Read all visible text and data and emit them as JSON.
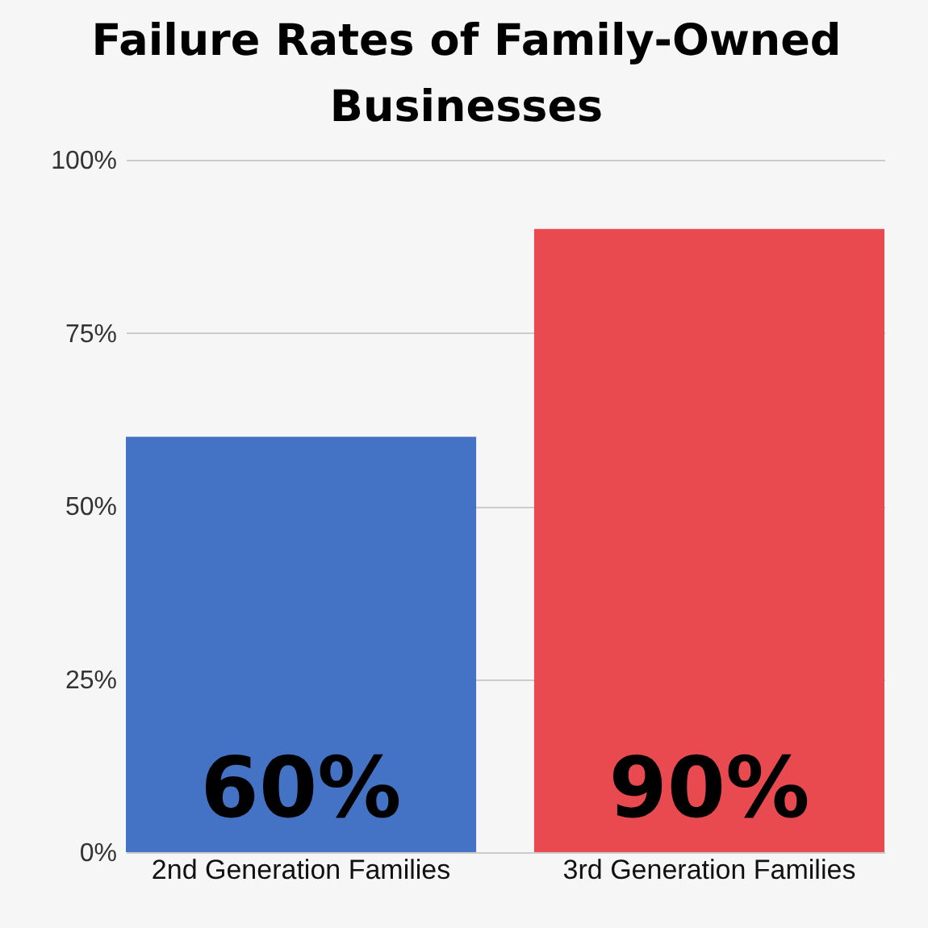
{
  "chart_data": {
    "type": "bar",
    "title": "Failure Rates of Family-Owned Businesses",
    "categories": [
      "2nd Generation Families",
      "3rd Generation Families"
    ],
    "values": [
      60,
      90
    ],
    "colors": [
      "#4472c4",
      "#e84a4f"
    ],
    "value_labels": [
      "60%",
      "90%"
    ],
    "ylim": [
      0,
      100
    ],
    "yticks": [
      {
        "value": 0,
        "label": "0%"
      },
      {
        "value": 25,
        "label": "25%"
      },
      {
        "value": 50,
        "label": "50%"
      },
      {
        "value": 75,
        "label": "75%"
      },
      {
        "value": 100,
        "label": "100%"
      }
    ],
    "grid": "y"
  }
}
